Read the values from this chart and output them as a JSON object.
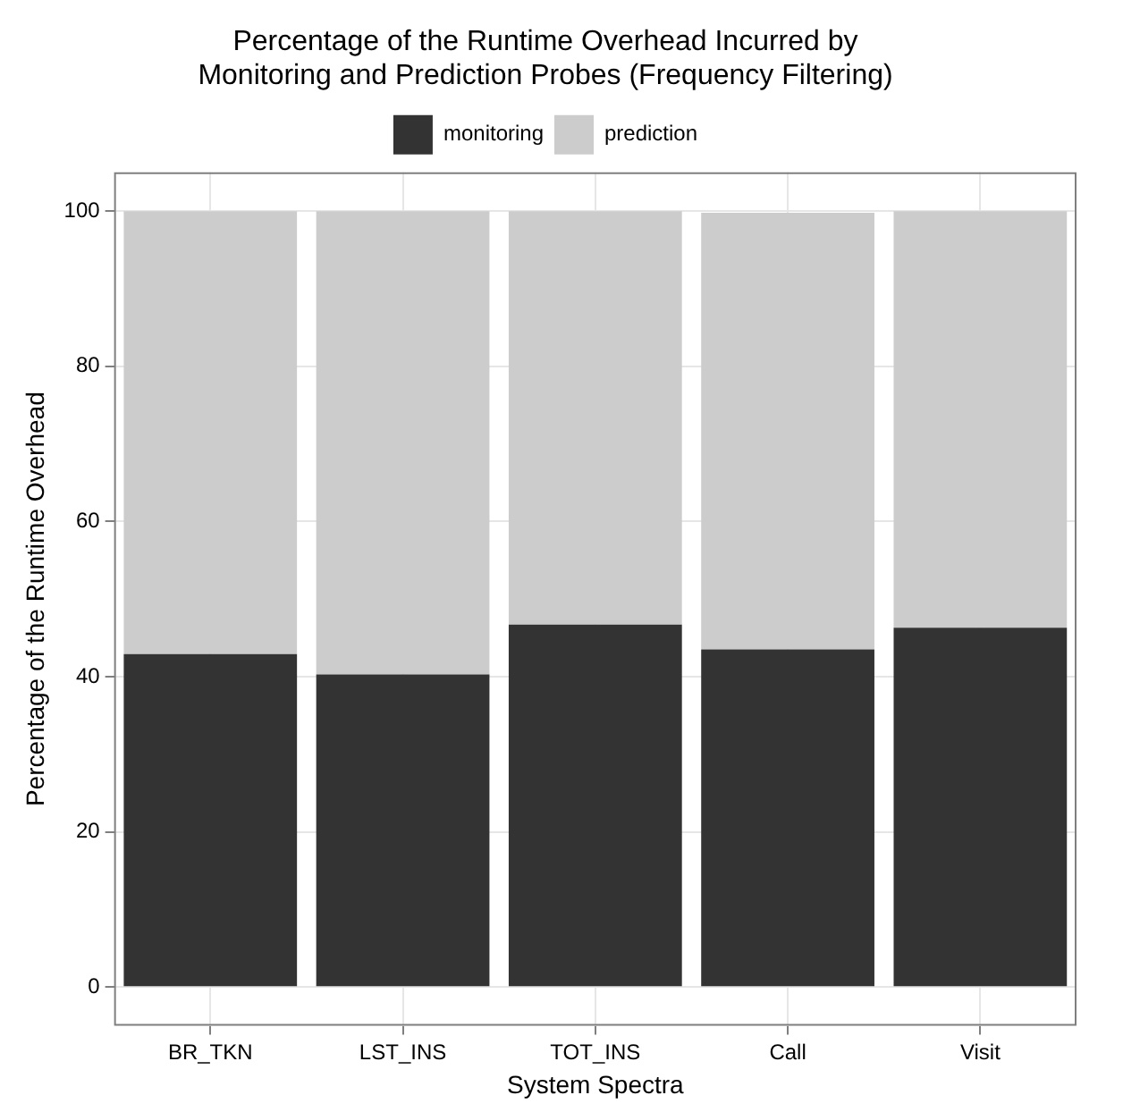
{
  "chart_data": {
    "type": "bar",
    "title": "Percentage of the Runtime Overhead Incurred by\nMonitoring and Prediction Probes (Frequency Filtering)",
    "xlabel": "System Spectra",
    "ylabel": "Percentage of the Runtime Overhead",
    "categories": [
      "BR_TKN",
      "LST_INS",
      "TOT_INS",
      "Call",
      "Visit"
    ],
    "series": [
      {
        "name": "monitoring",
        "color": "#333333",
        "values": [
          42.9,
          40.3,
          46.7,
          43.5,
          46.3
        ]
      },
      {
        "name": "prediction",
        "color": "#cccccc",
        "values": [
          57.1,
          59.7,
          53.3,
          56.3,
          53.7
        ]
      }
    ],
    "stacked": true,
    "ylim": [
      -5,
      105
    ],
    "yticks": [
      0,
      20,
      40,
      60,
      80,
      100
    ],
    "grid": true,
    "legend": "top"
  }
}
